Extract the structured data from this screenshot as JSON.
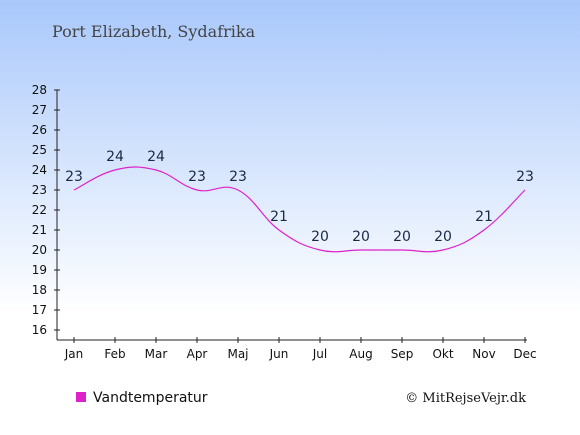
{
  "colors": {
    "bg_top": "#a9c8fb",
    "bg_bottom": "#ffffff",
    "series": "#dd22cc",
    "axis": "#222222"
  },
  "chart_data": {
    "type": "line",
    "title": "Port Elizabeth, Sydafrika",
    "categories": [
      "Jan",
      "Feb",
      "Mar",
      "Apr",
      "Maj",
      "Jun",
      "Jul",
      "Aug",
      "Sep",
      "Okt",
      "Nov",
      "Dec"
    ],
    "series": [
      {
        "name": "Vandtemperatur",
        "values": [
          23,
          24,
          24,
          23,
          23,
          21,
          20,
          20,
          20,
          20,
          21,
          23
        ]
      }
    ],
    "yticks": [
      "16",
      "17",
      "18",
      "19",
      "20",
      "21",
      "22",
      "23",
      "24",
      "25",
      "26",
      "27",
      "28"
    ],
    "ylim": [
      16,
      28
    ],
    "grid": false,
    "legend_position": "bottom-left"
  },
  "copyright": "© MitRejseVejr.dk"
}
